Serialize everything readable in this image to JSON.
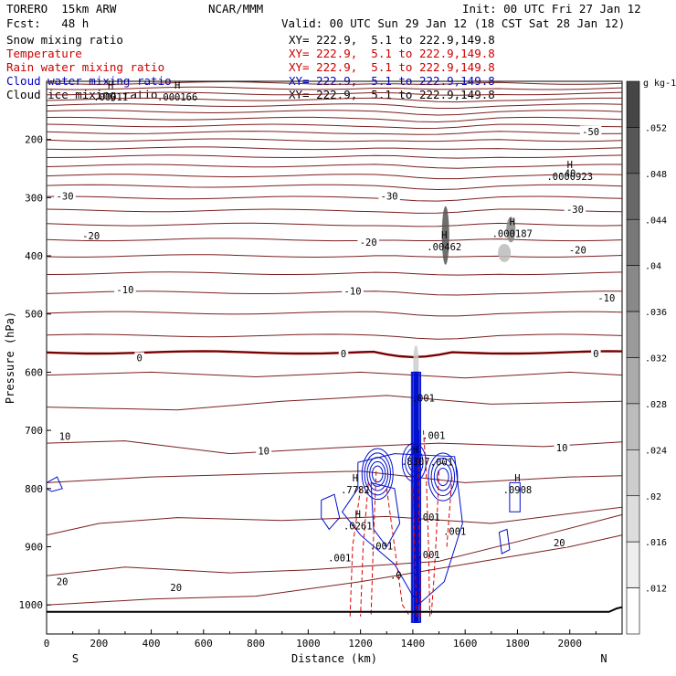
{
  "header": {
    "model": "TORERO  15km ARW",
    "org": "NCAR/MMM",
    "init": "Init: 00 UTC Fri 27 Jan 12",
    "fcst": "Fcst:   48 h",
    "valid": "Valid: 00 UTC Sun 29 Jan 12 (18 CST Sat 28 Jan 12)"
  },
  "legend": [
    {
      "name": "Snow mixing ratio",
      "xy": "XY= 222.9,  5.1 to 222.9,149.8",
      "color": "#000000"
    },
    {
      "name": "Temperature",
      "xy": "XY= 222.9,  5.1 to 222.9,149.8",
      "color": "#cc0000"
    },
    {
      "name": "Rain water mixing ratio",
      "xy": "XY= 222.9,  5.1 to 222.9,149.8",
      "color": "#cc0000"
    },
    {
      "name": "Cloud water mixing ratio",
      "xy": "XY= 222.9,  5.1 to 222.9,149.8",
      "color": "#0000cc"
    },
    {
      "name": "Cloud ice mixing ratio",
      "xy": "XY= 222.9,  5.1 to 222.9,149.8",
      "color": "#000000"
    }
  ],
  "chart_data": {
    "type": "contour cross-section",
    "xlabel": "Distance (km)",
    "ylabel": "Pressure (hPa)",
    "x_ticks": [
      0,
      200,
      400,
      600,
      800,
      1000,
      1200,
      1400,
      1600,
      1800,
      2000
    ],
    "y_ticks": [
      200,
      300,
      400,
      500,
      600,
      700,
      800,
      900,
      1000
    ],
    "xlim": [
      0,
      2200
    ],
    "ylim": [
      1050,
      100
    ],
    "end_labels": {
      "left": "S",
      "right": "N"
    },
    "colorbar": {
      "unit": "g kg-1",
      "values": [
        0.052,
        0.048,
        0.044,
        0.04,
        0.036,
        0.032,
        0.028,
        0.024,
        0.02,
        0.016,
        0.012
      ],
      "labels": [
        ".052",
        ".048",
        ".044",
        ".04",
        ".036",
        ".032",
        ".028",
        ".024",
        ".02",
        ".016",
        ".012"
      ]
    },
    "temperature_labels": [
      {
        "text": "-50",
        "x": 2080,
        "p": 186
      },
      {
        "text": "-40",
        "x": 1990,
        "p": 258
      },
      {
        "text": "-30",
        "x": 70,
        "p": 297
      },
      {
        "text": "-30",
        "x": 1310,
        "p": 297
      },
      {
        "text": "-30",
        "x": 2020,
        "p": 320
      },
      {
        "text": "-20",
        "x": 170,
        "p": 365
      },
      {
        "text": "-20",
        "x": 1230,
        "p": 376
      },
      {
        "text": "-20",
        "x": 2030,
        "p": 390
      },
      {
        "text": "-10",
        "x": 300,
        "p": 458
      },
      {
        "text": "-10",
        "x": 1170,
        "p": 460
      },
      {
        "text": "-10",
        "x": 2140,
        "p": 472
      },
      {
        "text": "0",
        "x": 355,
        "p": 575
      },
      {
        "text": "0",
        "x": 1135,
        "p": 568
      },
      {
        "text": "0",
        "x": 2100,
        "p": 568
      },
      {
        "text": "10",
        "x": 70,
        "p": 710
      },
      {
        "text": "10",
        "x": 830,
        "p": 735
      },
      {
        "text": "10",
        "x": 1970,
        "p": 730
      },
      {
        "text": "20",
        "x": 60,
        "p": 960
      },
      {
        "text": "20",
        "x": 495,
        "p": 970
      },
      {
        "text": "20",
        "x": 1960,
        "p": 893
      }
    ],
    "extrema": [
      {
        "marker": "H",
        "value": ".00011",
        "x": 245,
        "p": 125
      },
      {
        "marker": "H",
        "value": ".000166",
        "x": 500,
        "p": 125
      },
      {
        "marker": "H",
        "value": ".0000923",
        "x": 2000,
        "p": 262
      },
      {
        "marker": "H",
        "value": ".000187",
        "x": 1780,
        "p": 360
      },
      {
        "marker": "H",
        "value": ".00462",
        "x": 1520,
        "p": 383
      },
      {
        "marker": "H",
        "value": ".7782",
        "x": 1180,
        "p": 800
      },
      {
        "marker": "H",
        "value": ".0908",
        "x": 1800,
        "p": 800
      },
      {
        "marker": "H",
        "value": ".8307",
        "x": 1410,
        "p": 752
      },
      {
        "marker": "H",
        "value": ".0261",
        "x": 1190,
        "p": 862
      }
    ],
    "small_labels": [
      ".001",
      ".001",
      ".001",
      ".001",
      ".001",
      ".001",
      ".001",
      ".001",
      ".0"
    ]
  }
}
